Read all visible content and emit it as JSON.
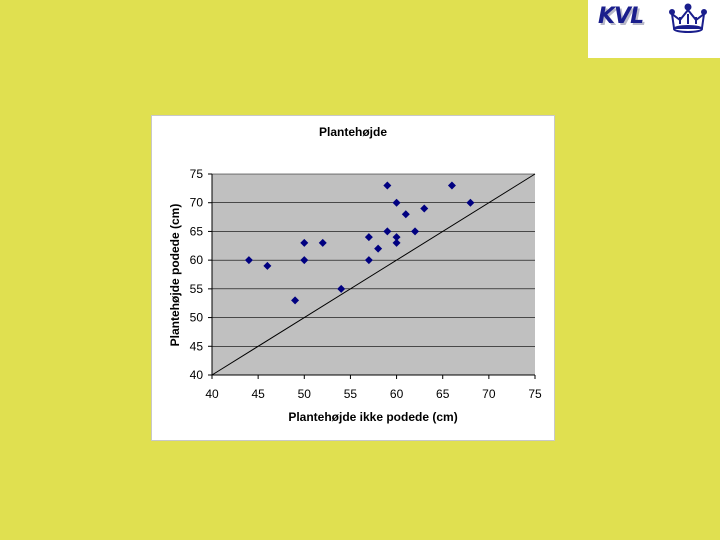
{
  "logo": {
    "text": "KVL",
    "icon": "crown-icon",
    "color": "#1a1e8c"
  },
  "colors": {
    "background": "#e0e050",
    "plot_area": "#c0c0c0",
    "marker": "#000080",
    "diagonal": "#000000"
  },
  "chart_data": {
    "type": "scatter",
    "title": "Plantehøjde",
    "xlabel": "Plantehøjde ikke podede (cm)",
    "ylabel": "Plantehøjde podede (cm)",
    "xlim": [
      40,
      75
    ],
    "ylim": [
      40,
      75
    ],
    "xticks": [
      40,
      45,
      50,
      55,
      60,
      65,
      70,
      75
    ],
    "yticks": [
      40,
      45,
      50,
      55,
      60,
      65,
      70,
      75
    ],
    "grid": "horizontal",
    "legend": "none",
    "reference_line": {
      "from": [
        40,
        40
      ],
      "to": [
        75,
        75
      ]
    },
    "points": [
      {
        "x": 44,
        "y": 60
      },
      {
        "x": 46,
        "y": 59
      },
      {
        "x": 49,
        "y": 53
      },
      {
        "x": 50,
        "y": 60
      },
      {
        "x": 50,
        "y": 63
      },
      {
        "x": 52,
        "y": 63
      },
      {
        "x": 54,
        "y": 55
      },
      {
        "x": 57,
        "y": 60
      },
      {
        "x": 57,
        "y": 64
      },
      {
        "x": 58,
        "y": 62
      },
      {
        "x": 59,
        "y": 65
      },
      {
        "x": 59,
        "y": 73
      },
      {
        "x": 60,
        "y": 63
      },
      {
        "x": 60,
        "y": 64
      },
      {
        "x": 60,
        "y": 70
      },
      {
        "x": 61,
        "y": 68
      },
      {
        "x": 62,
        "y": 65
      },
      {
        "x": 63,
        "y": 69
      },
      {
        "x": 66,
        "y": 73
      },
      {
        "x": 68,
        "y": 70
      }
    ]
  }
}
